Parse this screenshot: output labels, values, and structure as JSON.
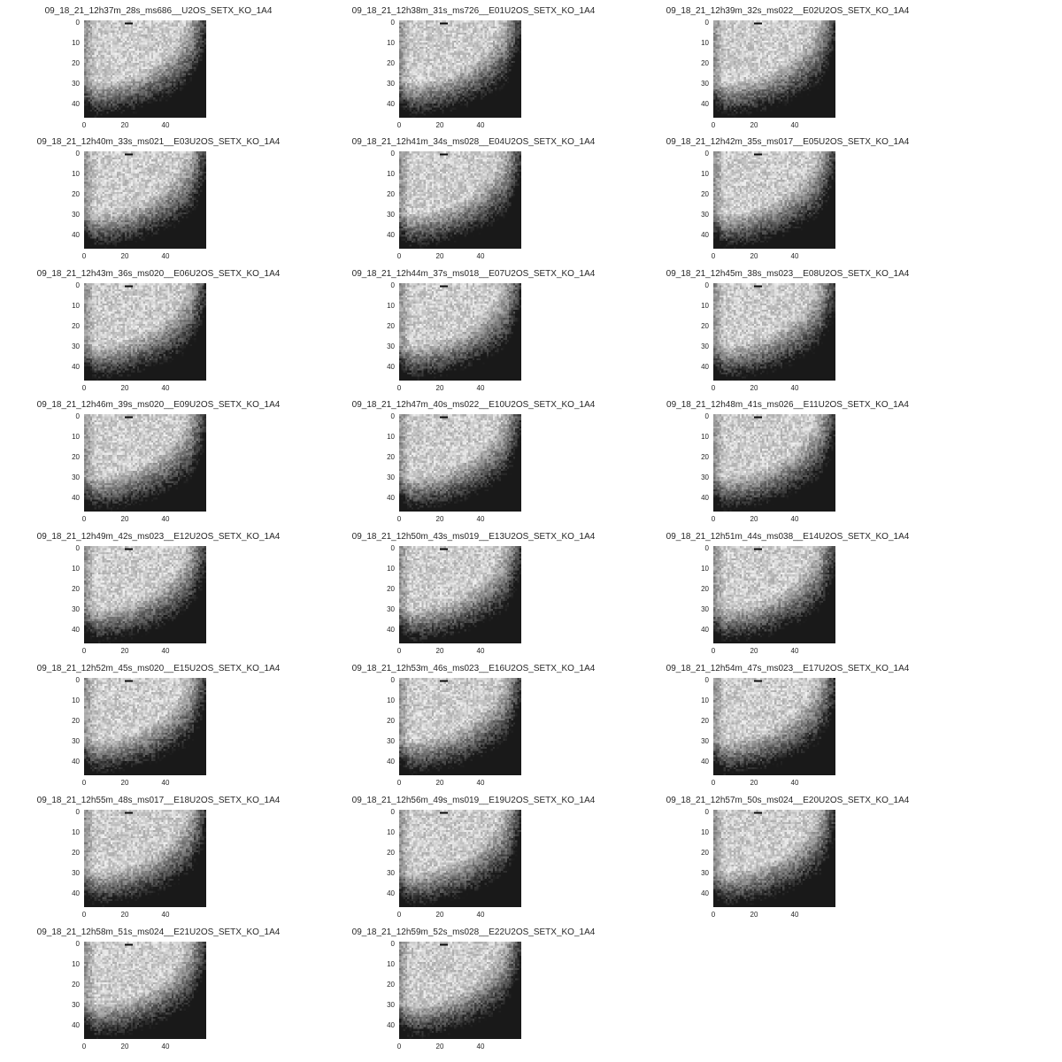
{
  "figure": {
    "x_ticks": [
      "0",
      "20",
      "40"
    ],
    "y_ticks": [
      "0",
      "10",
      "20",
      "30",
      "40"
    ],
    "colormap": "gray",
    "panels": [
      {
        "title": "09_18_21_12h37m_28s_ms686__U2OS_SETX_KO_1A4"
      },
      {
        "title": "09_18_21_12h38m_31s_ms726__E01U2OS_SETX_KO_1A4"
      },
      {
        "title": "09_18_21_12h39m_32s_ms022__E02U2OS_SETX_KO_1A4"
      },
      {
        "title": "09_18_21_12h40m_33s_ms021__E03U2OS_SETX_KO_1A4"
      },
      {
        "title": "09_18_21_12h41m_34s_ms028__E04U2OS_SETX_KO_1A4"
      },
      {
        "title": "09_18_21_12h42m_35s_ms017__E05U2OS_SETX_KO_1A4"
      },
      {
        "title": "09_18_21_12h43m_36s_ms020__E06U2OS_SETX_KO_1A4"
      },
      {
        "title": "09_18_21_12h44m_37s_ms018__E07U2OS_SETX_KO_1A4"
      },
      {
        "title": "09_18_21_12h45m_38s_ms023__E08U2OS_SETX_KO_1A4"
      },
      {
        "title": "09_18_21_12h46m_39s_ms020__E09U2OS_SETX_KO_1A4"
      },
      {
        "title": "09_18_21_12h47m_40s_ms022__E10U2OS_SETX_KO_1A4"
      },
      {
        "title": "09_18_21_12h48m_41s_ms026__E11U2OS_SETX_KO_1A4"
      },
      {
        "title": "09_18_21_12h49m_42s_ms023__E12U2OS_SETX_KO_1A4"
      },
      {
        "title": "09_18_21_12h50m_43s_ms019__E13U2OS_SETX_KO_1A4"
      },
      {
        "title": "09_18_21_12h51m_44s_ms038__E14U2OS_SETX_KO_1A4"
      },
      {
        "title": "09_18_21_12h52m_45s_ms020__E15U2OS_SETX_KO_1A4"
      },
      {
        "title": "09_18_21_12h53m_46s_ms023__E16U2OS_SETX_KO_1A4"
      },
      {
        "title": "09_18_21_12h54m_47s_ms023__E17U2OS_SETX_KO_1A4"
      },
      {
        "title": "09_18_21_12h55m_48s_ms017__E18U2OS_SETX_KO_1A4"
      },
      {
        "title": "09_18_21_12h56m_49s_ms019__E19U2OS_SETX_KO_1A4"
      },
      {
        "title": "09_18_21_12h57m_50s_ms024__E20U2OS_SETX_KO_1A4"
      },
      {
        "title": "09_18_21_12h58m_51s_ms024__E21U2OS_SETX_KO_1A4"
      },
      {
        "title": "09_18_21_12h59m_52s_ms028__E22U2OS_SETX_KO_1A4"
      }
    ]
  }
}
